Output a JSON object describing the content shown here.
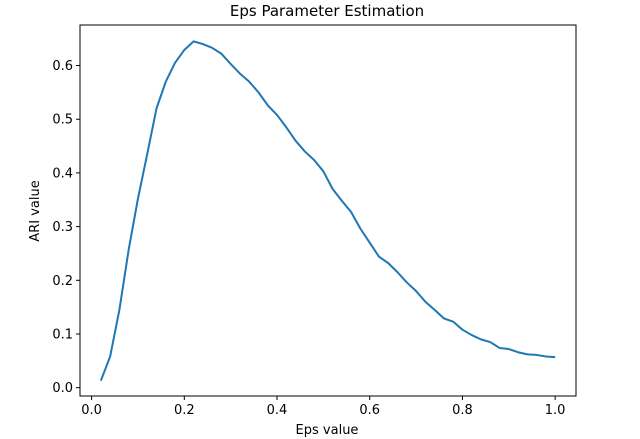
{
  "chart_data": {
    "type": "line",
    "title": "Eps Parameter Estimation",
    "xlabel": "Eps value",
    "ylabel": "ARI value",
    "xlim": [
      -0.025,
      1.045
    ],
    "ylim": [
      -0.0155,
      0.6755
    ],
    "xticks": [
      0.0,
      0.2,
      0.4,
      0.6,
      0.8,
      1.0
    ],
    "xtick_labels": [
      "0.0",
      "0.2",
      "0.4",
      "0.6",
      "0.8",
      "1.0"
    ],
    "yticks": [
      0.0,
      0.1,
      0.2,
      0.3,
      0.4,
      0.5,
      0.6
    ],
    "ytick_labels": [
      "0.0",
      "0.1",
      "0.2",
      "0.3",
      "0.4",
      "0.5",
      "0.6"
    ],
    "grid": false,
    "legend": "none",
    "color": "#1f77b4",
    "series": [
      {
        "x": [
          0.02,
          0.04,
          0.06,
          0.08,
          0.1,
          0.12,
          0.14,
          0.16,
          0.18,
          0.2,
          0.22,
          0.24,
          0.26,
          0.28,
          0.3,
          0.32,
          0.34,
          0.36,
          0.38,
          0.4,
          0.42,
          0.44,
          0.46,
          0.48,
          0.5,
          0.52,
          0.54,
          0.56,
          0.58,
          0.6,
          0.62,
          0.64,
          0.66,
          0.68,
          0.7,
          0.72,
          0.74,
          0.76,
          0.78,
          0.8,
          0.82,
          0.84,
          0.86,
          0.88,
          0.9,
          0.92,
          0.94,
          0.96,
          0.98,
          1.0
        ],
        "y": [
          0.013,
          0.058,
          0.145,
          0.257,
          0.352,
          0.435,
          0.52,
          0.57,
          0.605,
          0.629,
          0.645,
          0.64,
          0.633,
          0.622,
          0.603,
          0.585,
          0.57,
          0.55,
          0.526,
          0.508,
          0.485,
          0.46,
          0.44,
          0.424,
          0.403,
          0.37,
          0.348,
          0.327,
          0.296,
          0.27,
          0.244,
          0.232,
          0.215,
          0.196,
          0.18,
          0.16,
          0.145,
          0.129,
          0.123,
          0.108,
          0.098,
          0.09,
          0.085,
          0.074,
          0.072,
          0.066,
          0.062,
          0.061,
          0.058,
          0.057
        ]
      }
    ]
  }
}
